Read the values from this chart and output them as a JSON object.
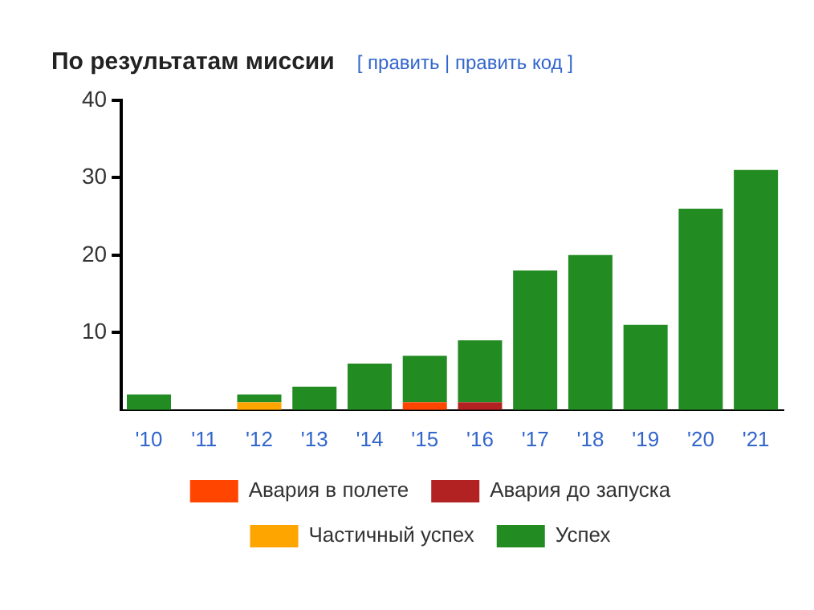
{
  "chart_data": {
    "type": "bar",
    "title": "По результатам миссии",
    "annotations": [
      "[ править | править код ]"
    ],
    "categories": [
      "'10",
      "'11",
      "'12",
      "'13",
      "'14",
      "'15",
      "'16",
      "'17",
      "'18",
      "'19",
      "'20",
      "'21"
    ],
    "series": [
      {
        "name": "Авария в полете",
        "color": "#ff4500",
        "values": [
          0,
          0,
          0,
          0,
          0,
          1,
          0,
          0,
          0,
          0,
          0,
          0
        ]
      },
      {
        "name": "Авария до запуска",
        "color": "#b22222",
        "values": [
          0,
          0,
          0,
          0,
          0,
          0,
          1,
          0,
          0,
          0,
          0,
          0
        ]
      },
      {
        "name": "Частичный успех",
        "color": "#ffa500",
        "values": [
          0,
          0,
          1,
          0,
          0,
          0,
          0,
          0,
          0,
          0,
          0,
          0
        ]
      },
      {
        "name": "Успех",
        "color": "#228b22",
        "values": [
          2,
          0,
          1,
          3,
          6,
          6,
          8,
          18,
          20,
          11,
          26,
          31
        ]
      }
    ],
    "stacked": true,
    "ylim": [
      0,
      40
    ],
    "yticks": [
      10,
      20,
      30,
      40
    ],
    "grid": false,
    "legend": "bottom"
  }
}
